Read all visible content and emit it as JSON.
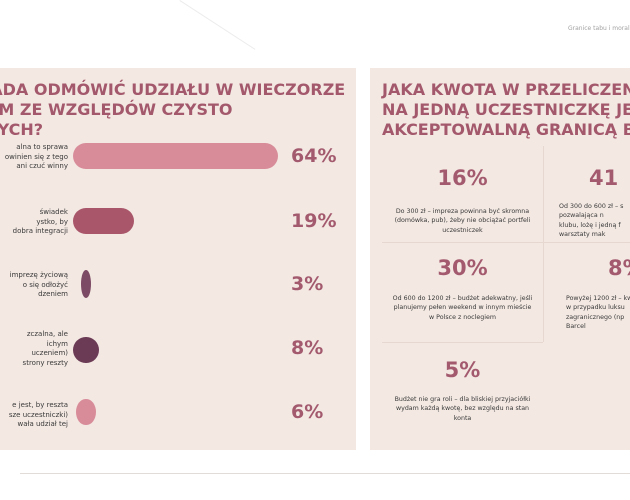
{
  "top_label": "Granice tabu i moral",
  "colors": {
    "panel_bg": "#f3e8e2",
    "title": "#a3586b",
    "percent": "#a35a6e"
  },
  "chart_data": [
    {
      "type": "bar",
      "title": "PADA ODMÓWIĆ UDZIAŁU W WIECZORZE\nKIM ZE WZGLĘDÓW CZYSTO\nWYCH?",
      "categories": [
        "alna to sprawa\nowinien się z tego\nani czuć winny",
        "świadek\nystko, by\ndobra integracji",
        "imprezę życiową\no się odłożyć\ndzeniem",
        "zczalna, ale\nichym\nuczeniem)\nstrony reszty",
        "e jest, by reszta\nsze uczestniczki)\nwała udział tej"
      ],
      "values": [
        64,
        19,
        3,
        8,
        6
      ],
      "value_labels": [
        "64%",
        "19%",
        "3%",
        "8%",
        "6%"
      ],
      "colors": [
        "#d88c9a",
        "#a9566a",
        "#7c4a64",
        "#6b3a55",
        "#d88c9a"
      ],
      "unit": "%"
    },
    {
      "type": "table",
      "title": "JAKA KWOTA W PRZELICZENIU\nNA JEDNĄ UCZESTNICZKĘ JEST\nAKCEPTOWALNĄ GRANICĄ BU",
      "cells": [
        {
          "value": 16,
          "label": "16%",
          "text": "Do 300 zł – impreza powinna być skromna\n(domówka, pub), żeby nie obciążać portfeli\nuczestniczek"
        },
        {
          "value": 41,
          "label": "41",
          "text": "Od 300 do 600 zł – s\npozwalająca n\nklubu, lożę i jedną f\nwarsztaty mak"
        },
        {
          "value": 30,
          "label": "30%",
          "text": "Od 600 do 1200 zł – budżet adekwatny, jeśli\nplanujemy pełen weekend w innym mieście\nw Polsce z noclegiem"
        },
        {
          "value": 8,
          "label": "8%",
          "text": "Powyżej 1200 zł – kwo\nw przypadku luksu\nzagranicznego (np\nBarcel"
        },
        {
          "value": 5,
          "label": "5%",
          "text": "Budżet nie gra roli – dla bliskiej przyjaciółki\nwydam każdą kwotę, bez względu na stan\nkonta"
        }
      ]
    }
  ]
}
